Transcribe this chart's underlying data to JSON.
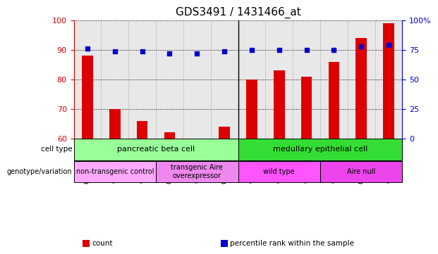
{
  "title": "GDS3491 / 1431466_at",
  "samples": [
    "GSM304902",
    "GSM304903",
    "GSM304904",
    "GSM304905",
    "GSM304906",
    "GSM304907",
    "GSM304908",
    "GSM304909",
    "GSM304910",
    "GSM304911",
    "GSM304912",
    "GSM304913"
  ],
  "counts": [
    88,
    70,
    66,
    62,
    60,
    64,
    80,
    83,
    81,
    86,
    94,
    99
  ],
  "percentiles": [
    76,
    74,
    74,
    72,
    72,
    74,
    75,
    75,
    75,
    75,
    78,
    79
  ],
  "ylim_left": [
    60,
    100
  ],
  "ylim_right": [
    0,
    100
  ],
  "yticks_left": [
    60,
    70,
    80,
    90,
    100
  ],
  "yticks_right": [
    0,
    25,
    50,
    75,
    100
  ],
  "ytick_right_labels": [
    "0",
    "25",
    "50",
    "75",
    "100%"
  ],
  "bar_color": "#dd0000",
  "dot_color": "#0000cc",
  "bar_bottom": 60,
  "cell_type_groups": [
    {
      "label": "pancreatic beta cell",
      "start": 0,
      "end": 6,
      "color": "#99ff99"
    },
    {
      "label": "medullary epithelial cell",
      "start": 6,
      "end": 12,
      "color": "#33dd33"
    }
  ],
  "genotype_groups": [
    {
      "label": "non-transgenic control",
      "start": 0,
      "end": 3,
      "color": "#ffaaff"
    },
    {
      "label": "transgenic Aire\noverexpressor",
      "start": 3,
      "end": 6,
      "color": "#ee88ee"
    },
    {
      "label": "wild type",
      "start": 6,
      "end": 9,
      "color": "#ff55ff"
    },
    {
      "label": "Aire null",
      "start": 9,
      "end": 12,
      "color": "#ee44ee"
    }
  ],
  "legend_items": [
    {
      "label": "count",
      "color": "#dd0000"
    },
    {
      "label": "percentile rank within the sample",
      "color": "#0000cc"
    }
  ],
  "row_labels": [
    "cell type",
    "genotype/variation"
  ],
  "background_color": "#ffffff",
  "tick_label_color_left": "#dd0000",
  "tick_label_color_right": "#0000cc"
}
